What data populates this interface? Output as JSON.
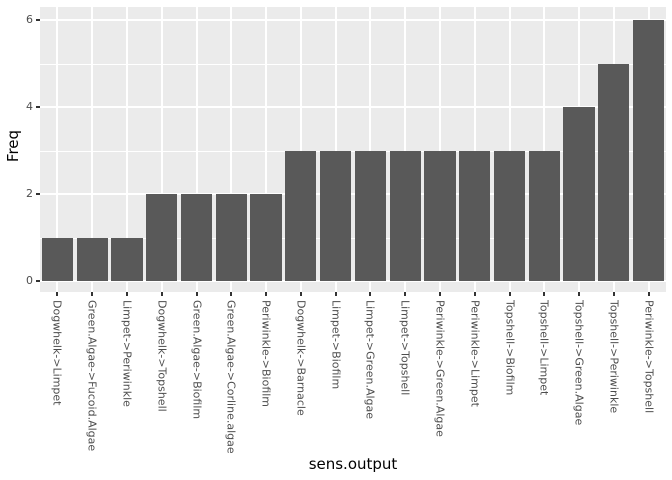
{
  "chart_data": {
    "type": "bar",
    "title": "",
    "xlabel": "sens.output",
    "ylabel": "Freq",
    "categories": [
      "Dogwhelk->Limpet",
      "Green.Algae->Fucoid.Algae",
      "Limpet->Periwinkle",
      "Dogwhelk->Topshell",
      "Green.Algae->Biofilm",
      "Green.Algae->Corline.algae",
      "Periwinkle->Biofilm",
      "Dogwhelk->Barnacle",
      "Limpet->Biofilm",
      "Limpet->Green.Algae",
      "Limpet->Topshell",
      "Periwinkle->Green.Algae",
      "Periwinkle->Limpet",
      "Topshell->Biofilm",
      "Topshell->Limpet",
      "Topshell->Green.Algae",
      "Topshell->Periwinkle",
      "Periwinkle->Topshell"
    ],
    "values": [
      1,
      1,
      1,
      2,
      2,
      2,
      2,
      3,
      3,
      3,
      3,
      3,
      3,
      3,
      3,
      4,
      5,
      6
    ],
    "ylim": [
      0,
      6
    ],
    "yticks_major": [
      0,
      2,
      4,
      6
    ],
    "yticks_minor": [
      1,
      3,
      5
    ],
    "grid": true,
    "legend": false,
    "bar_width_fraction": 0.9,
    "colors": {
      "bar": "#595959",
      "panel_bg": "#EBEBEB",
      "grid": "#FFFFFF",
      "tick_label": "#4D4D4D",
      "tick_mark": "#333333",
      "axis_title": "#000000",
      "outer_bg": "#FFFFFF"
    }
  }
}
